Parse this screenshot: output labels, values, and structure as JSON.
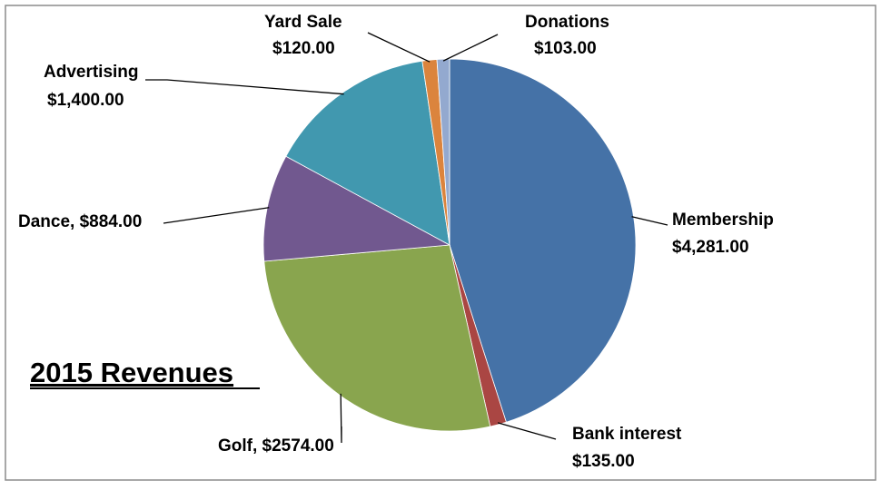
{
  "chart_data": {
    "type": "pie",
    "title": "2015 Revenues",
    "slices": [
      {
        "category": "Membership",
        "value": 4281,
        "label": [
          "Membership",
          "$4,281.00"
        ],
        "color": "#4572A7"
      },
      {
        "category": "Bank interest",
        "value": 135,
        "label": [
          "Bank interest",
          "$135.00"
        ],
        "color": "#AA4643"
      },
      {
        "category": "Golf",
        "value": 2574,
        "label": [
          "Golf, $2574.00"
        ],
        "color": "#89A54E"
      },
      {
        "category": "Dance",
        "value": 884,
        "label": [
          "Dance, $884.00"
        ],
        "color": "#71588F"
      },
      {
        "category": "Advertising",
        "value": 1400,
        "label": [
          "Advertising",
          "$1,400.00"
        ],
        "color": "#4198AF"
      },
      {
        "category": "Yard Sale",
        "value": 120,
        "label": [
          "Yard Sale",
          "$120.00"
        ],
        "color": "#DB843D"
      },
      {
        "category": "Donations",
        "value": 103,
        "label": [
          "Donations",
          "$103.00"
        ],
        "color": "#93A9CF"
      }
    ]
  }
}
